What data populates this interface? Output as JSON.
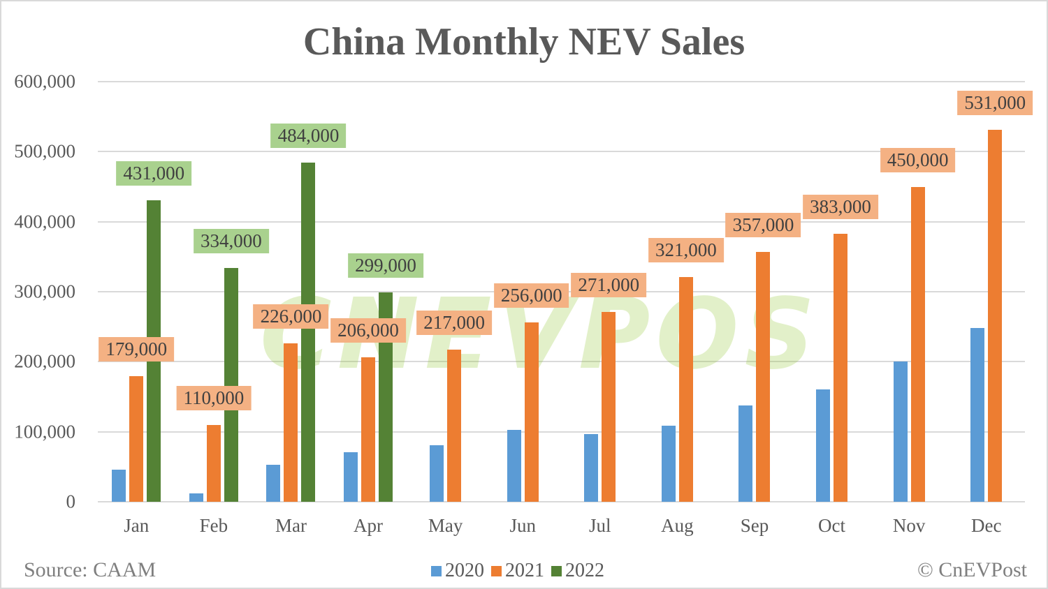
{
  "title": "China Monthly NEV Sales",
  "source": "Source: CAAM",
  "copyright": "© CnEVPost",
  "watermark": "CNEVPOST",
  "colors": {
    "2020": "#5b9bd5",
    "2021": "#ed7d31",
    "2022": "#548235",
    "label_2021_bg": "#f4b183",
    "label_2022_bg": "#a9d18e"
  },
  "y_ticks": [
    "0",
    "100,000",
    "200,000",
    "300,000",
    "400,000",
    "500,000",
    "600,000"
  ],
  "legend": [
    {
      "label": "2020",
      "color": "#5b9bd5"
    },
    {
      "label": "2021",
      "color": "#ed7d31"
    },
    {
      "label": "2022",
      "color": "#548235"
    }
  ],
  "chart_data": {
    "type": "bar",
    "title": "China Monthly NEV Sales",
    "xlabel": "",
    "ylabel": "",
    "ylim": [
      0,
      600000
    ],
    "grid": true,
    "legend_position": "bottom",
    "categories": [
      "Jan",
      "Feb",
      "Mar",
      "Apr",
      "May",
      "Jun",
      "Jul",
      "Aug",
      "Sep",
      "Oct",
      "Nov",
      "Dec"
    ],
    "series": [
      {
        "name": "2020",
        "values": [
          46000,
          12000,
          53000,
          71000,
          81000,
          103000,
          97000,
          109000,
          138000,
          160000,
          200000,
          248000
        ]
      },
      {
        "name": "2021",
        "values": [
          179000,
          110000,
          226000,
          206000,
          217000,
          256000,
          271000,
          321000,
          357000,
          383000,
          450000,
          531000
        ],
        "data_labels": [
          "179,000",
          "110,000",
          "226,000",
          "206,000",
          "217,000",
          "256,000",
          "271,000",
          "321,000",
          "357,000",
          "383,000",
          "450,000",
          "531,000"
        ]
      },
      {
        "name": "2022",
        "values": [
          431000,
          334000,
          484000,
          299000,
          null,
          null,
          null,
          null,
          null,
          null,
          null,
          null
        ],
        "data_labels": [
          "431,000",
          "334,000",
          "484,000",
          "299,000"
        ]
      }
    ],
    "annotations": [
      "Source: CAAM",
      "© CnEVPost"
    ]
  }
}
